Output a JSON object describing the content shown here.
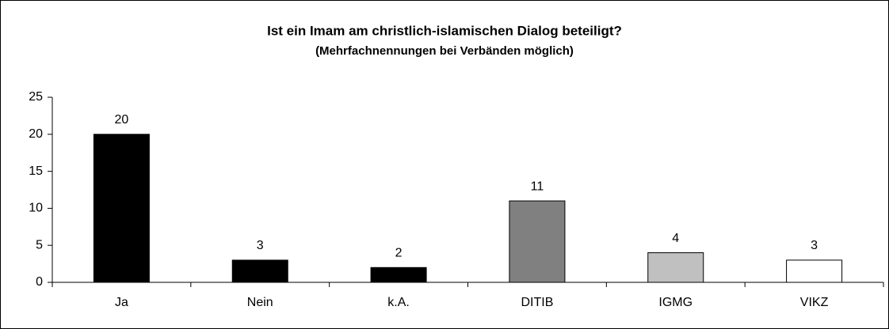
{
  "chart_data": {
    "type": "bar",
    "title": "Ist ein Imam am christlich-islamischen Dialog beteiligt?",
    "subtitle": "(Mehrfachnennungen bei Verbänden möglich)",
    "categories": [
      "Ja",
      "Nein",
      "k.A.",
      "DITIB",
      "IGMG",
      "VIKZ"
    ],
    "values": [
      20,
      3,
      2,
      11,
      4,
      3
    ],
    "colors": [
      "#000000",
      "#000000",
      "#000000",
      "#808080",
      "#c0c0c0",
      "#ffffff"
    ],
    "ylim": [
      0,
      25
    ],
    "yticks": [
      0,
      5,
      10,
      15,
      20,
      25
    ],
    "grid": false
  }
}
